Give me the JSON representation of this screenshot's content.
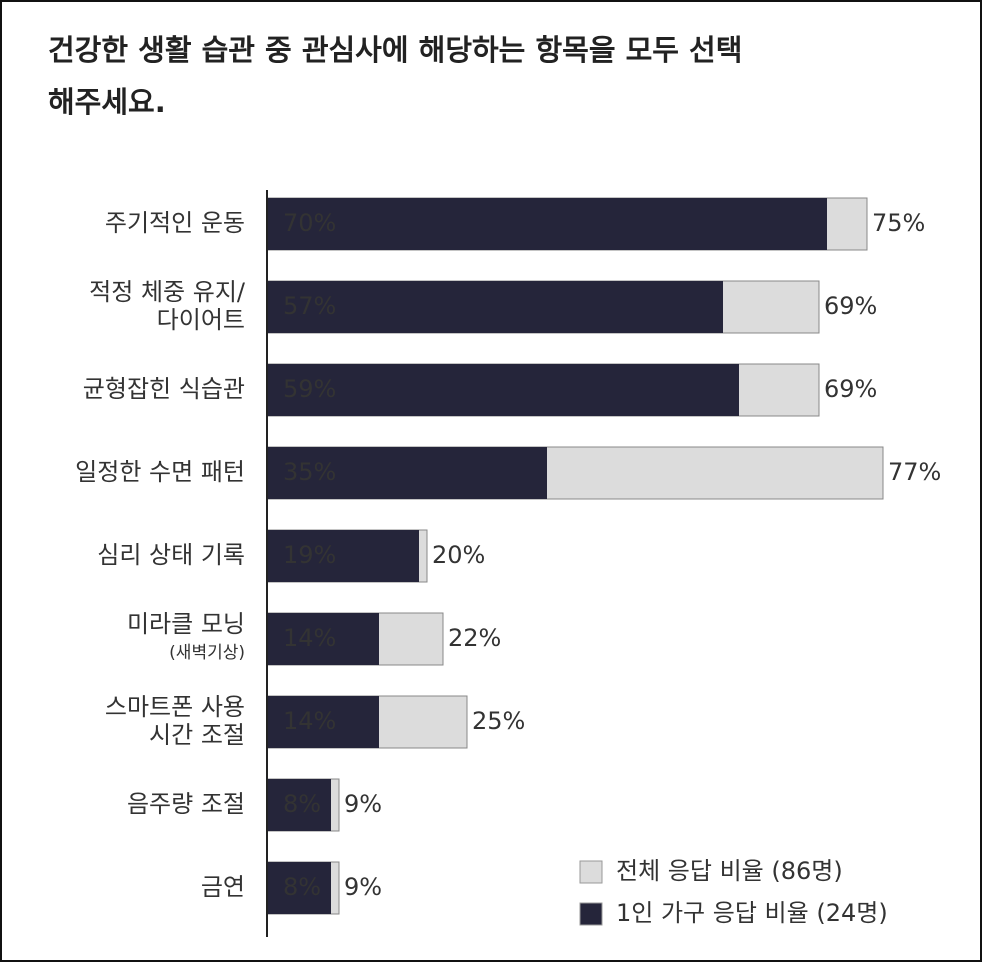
{
  "chart_data": {
    "type": "bar",
    "orientation": "horizontal",
    "title": "건강한 생활 습관 중 관심사에 해당하는 항목을 모두 선택\n해주세요.",
    "categories": [
      "주기적인 운동",
      "적정 체중 유지/\n다이어트",
      "균형잡힌 식습관",
      "일정한 수면 패턴",
      "심리 상태 기록",
      "미라클 모닝\n(새벽기상)",
      "스마트폰 사용\n시간 조절",
      "음주량 조절",
      "금연"
    ],
    "series": [
      {
        "name": "전체 응답 비율 (86명)",
        "color": "#dcdcdc",
        "values": [
          75,
          69,
          69,
          77,
          20,
          22,
          25,
          9,
          9
        ],
        "value_labels": [
          "75%",
          "69%",
          "69%",
          "77%",
          "20%",
          "22%",
          "25%",
          "9%",
          "9%"
        ]
      },
      {
        "name": "1인 가구 응답 비율 (24명)",
        "color": "#25253a",
        "values": [
          70,
          57,
          59,
          35,
          19,
          14,
          14,
          8,
          8
        ],
        "value_labels": [
          "70%",
          "57%",
          "59%",
          "35%",
          "19%",
          "14%",
          "14%",
          "8%",
          "8%"
        ]
      }
    ],
    "legend": "bottom-right"
  }
}
